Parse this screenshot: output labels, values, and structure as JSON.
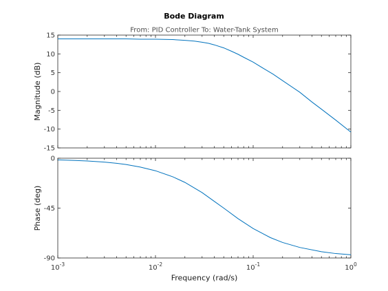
{
  "chart_data": {
    "type": "line",
    "title": "Bode Diagram",
    "subtitle": "From: PID Controller  To: Water-Tank System",
    "xlabel": "Frequency  (rad/s)",
    "xscale": "log",
    "xlim": [
      0.001,
      1
    ],
    "xticks": [
      0.001,
      0.01,
      0.1,
      1
    ],
    "xtick_labels": [
      {
        "base": "10",
        "exp": "-3"
      },
      {
        "base": "10",
        "exp": "-2"
      },
      {
        "base": "10",
        "exp": "-1"
      },
      {
        "base": "10",
        "exp": "0"
      }
    ],
    "grid": false,
    "line_color": "#0072bd",
    "subplots": [
      {
        "ylabel": "Magnitude (dB)",
        "ylim": [
          -15,
          15
        ],
        "yticks": [
          15,
          10,
          5,
          0,
          -5,
          -10,
          -15
        ],
        "ytick_labels": [
          "15",
          "10",
          "5",
          "0",
          "-5",
          "-10",
          "-15"
        ],
        "x": [
          0.001,
          0.0015,
          0.002,
          0.003,
          0.005,
          0.007,
          0.01,
          0.015,
          0.02,
          0.025,
          0.03,
          0.035,
          0.04,
          0.05,
          0.06,
          0.07,
          0.08,
          0.1,
          0.13,
          0.16,
          0.2,
          0.3,
          0.4,
          0.5,
          0.7,
          1
        ],
        "values": [
          14.0,
          14.0,
          14.0,
          14.0,
          14.0,
          13.9,
          13.9,
          13.8,
          13.6,
          13.4,
          13.1,
          12.8,
          12.4,
          11.6,
          10.7,
          9.9,
          9.1,
          7.8,
          6.0,
          4.6,
          2.9,
          -0.2,
          -2.8,
          -4.7,
          -7.6,
          -10.8
        ]
      },
      {
        "ylabel": "Phase (deg)",
        "ylim": [
          -90,
          0
        ],
        "yticks": [
          0,
          -45,
          -90
        ],
        "ytick_labels": [
          "0",
          "-45",
          "-90"
        ],
        "x": [
          0.001,
          0.0015,
          0.002,
          0.003,
          0.004,
          0.005,
          0.007,
          0.01,
          0.015,
          0.02,
          0.03,
          0.04,
          0.05,
          0.07,
          0.1,
          0.15,
          0.2,
          0.3,
          0.5,
          0.7,
          1
        ],
        "values": [
          -1.5,
          -2.0,
          -2.5,
          -3.5,
          -4.6,
          -5.7,
          -8.0,
          -11.3,
          -16.7,
          -21.8,
          -31.0,
          -38.9,
          -45.0,
          -54.5,
          -63.4,
          -71.6,
          -76.0,
          -80.5,
          -84.3,
          -86.0,
          -87.1
        ]
      }
    ]
  }
}
